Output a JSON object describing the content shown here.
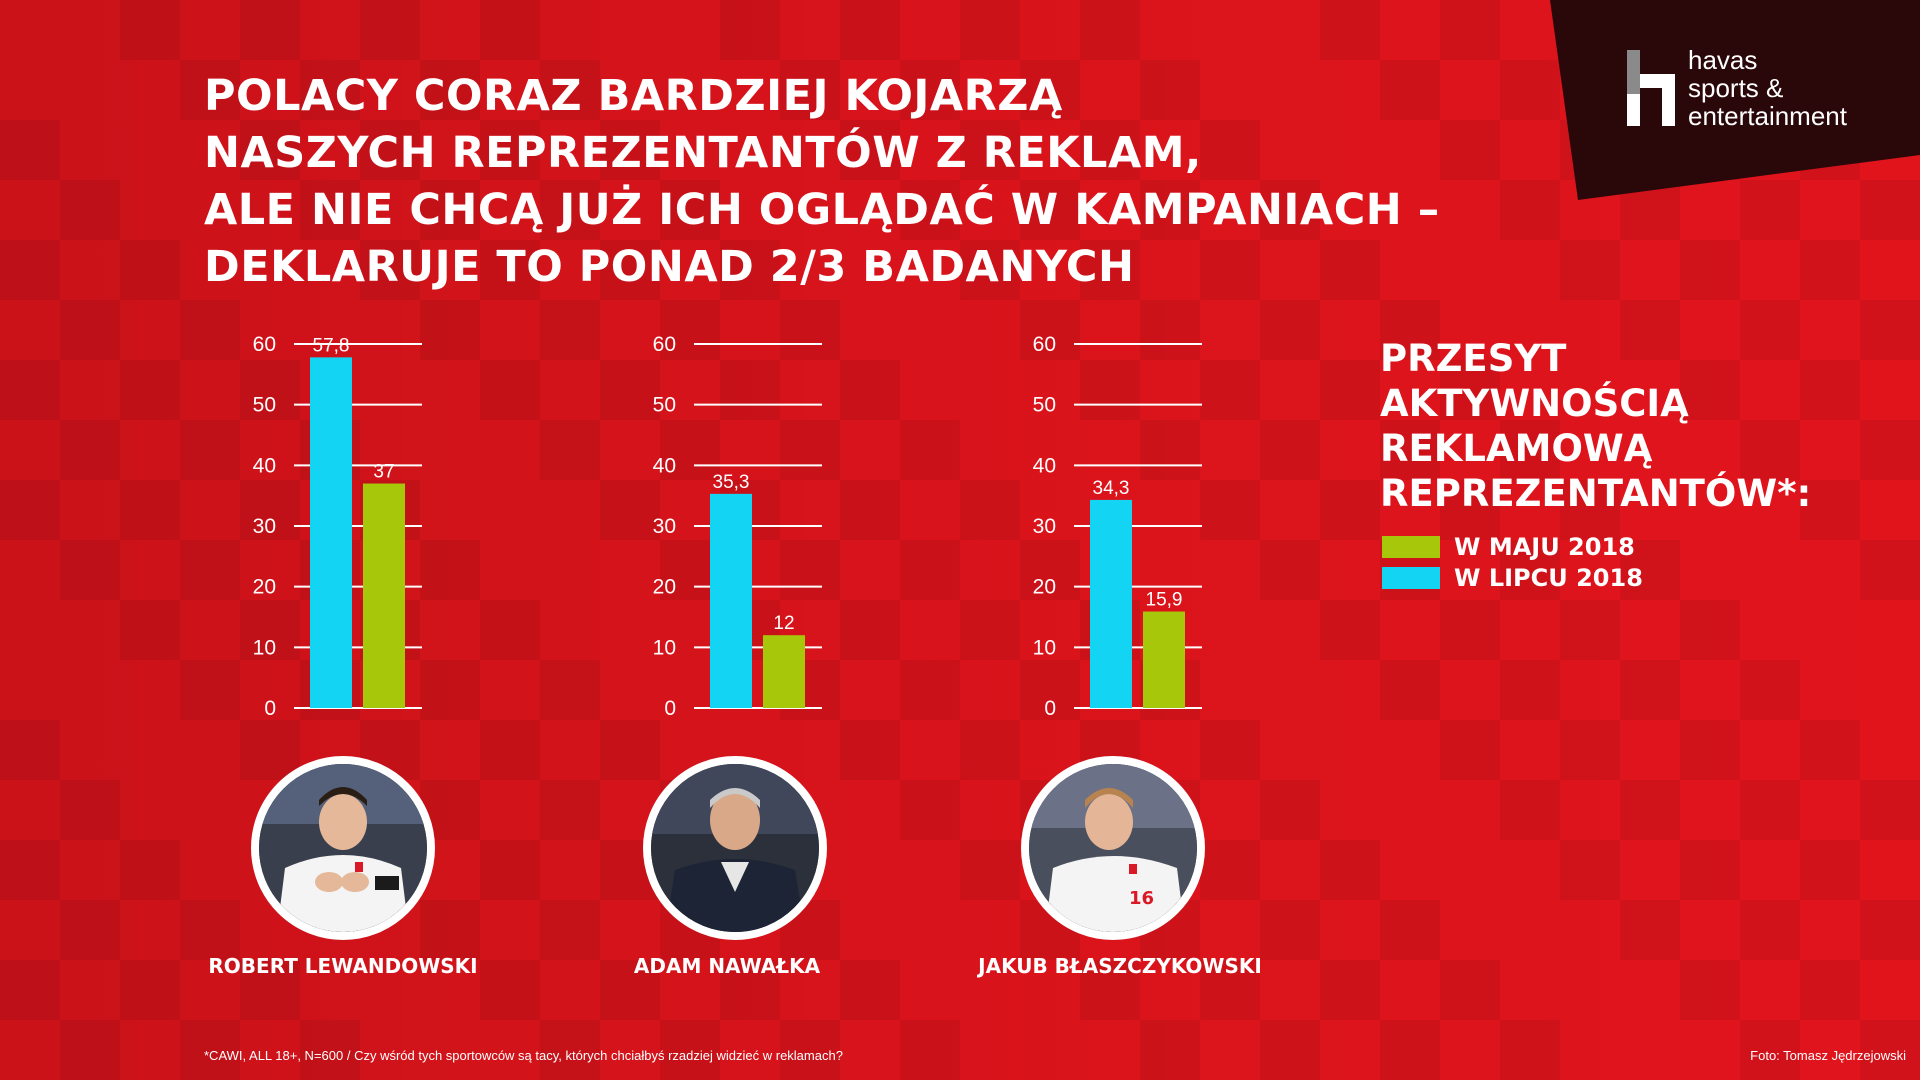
{
  "headline": [
    "POLACY CORAZ BARDZIEJ KOJARZĄ",
    "NASZYCH REPREZENTANTÓW Z REKLAM,",
    "ALE NIE CHCĄ JUŻ ICH OGLĄDAĆ W KAMPANIACH –",
    "DEKLARUJE TO PONAD 2/3 BADANYCH"
  ],
  "logo": {
    "line1": "havas",
    "line2": "sports &",
    "line3": "entertainment",
    "icon": "havas-h-logo-icon"
  },
  "legend": {
    "title": [
      "PRZESYT",
      "AKTYWNOŚCIĄ",
      "REKLAMOWĄ",
      "REPREZENTANTÓW*:"
    ],
    "items": [
      {
        "label": "W MAJU 2018",
        "color": "#a7c80a"
      },
      {
        "label": "W LIPCU 2018",
        "color": "#14d4f4"
      }
    ]
  },
  "players": [
    {
      "name": "ROBERT LEWANDOWSKI",
      "icon": "player-photo-lewandowski"
    },
    {
      "name": "ADAM NAWAŁKA",
      "icon": "player-photo-nawalka"
    },
    {
      "name": "JAKUB BŁASZCZYKOWSKI",
      "icon": "player-photo-blaszczykowski"
    }
  ],
  "footnote": "*CAWI, ALL 18+, N=600 / Czy wśród tych sportowców są tacy, których chciałbyś rzadziej widzieć w reklamach?",
  "credit": "Foto: Tomasz Jędrzejowski",
  "colors": {
    "background": "#e1141c",
    "july": "#14d4f4",
    "may": "#a7c80a",
    "logo_panel": "#2a0709"
  },
  "chart_data": [
    {
      "type": "bar",
      "categories": [
        "ROBERT LEWANDOWSKI"
      ],
      "series": [
        {
          "name": "W LIPCU 2018",
          "values": [
            57.8
          ],
          "labels": [
            "57,8"
          ]
        },
        {
          "name": "W MAJU 2018",
          "values": [
            37
          ],
          "labels": [
            "37"
          ]
        }
      ],
      "yticks": [
        "0",
        "10",
        "20",
        "30",
        "40",
        "50",
        "60"
      ],
      "ylim": [
        0,
        60
      ],
      "grid": true
    },
    {
      "type": "bar",
      "categories": [
        "ADAM NAWAŁKA"
      ],
      "series": [
        {
          "name": "W LIPCU 2018",
          "values": [
            35.3
          ],
          "labels": [
            "35,3"
          ]
        },
        {
          "name": "W MAJU 2018",
          "values": [
            12
          ],
          "labels": [
            "12"
          ]
        }
      ],
      "yticks": [
        "0",
        "10",
        "20",
        "30",
        "40",
        "50",
        "60"
      ],
      "ylim": [
        0,
        60
      ],
      "grid": true
    },
    {
      "type": "bar",
      "categories": [
        "JAKUB BŁASZCZYKOWSKI"
      ],
      "series": [
        {
          "name": "W LIPCU 2018",
          "values": [
            34.3
          ],
          "labels": [
            "34,3"
          ]
        },
        {
          "name": "W MAJU 2018",
          "values": [
            15.9
          ],
          "labels": [
            "15,9"
          ]
        }
      ],
      "yticks": [
        "0",
        "10",
        "20",
        "30",
        "40",
        "50",
        "60"
      ],
      "ylim": [
        0,
        60
      ],
      "grid": true
    }
  ]
}
